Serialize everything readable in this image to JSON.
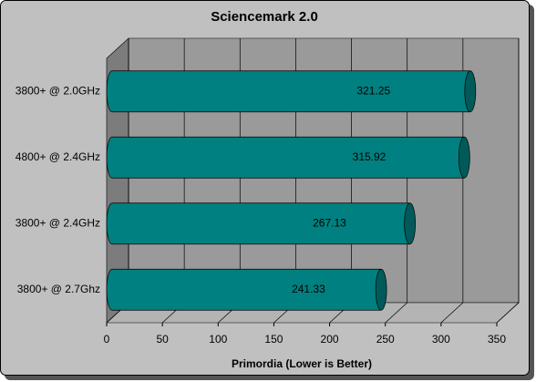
{
  "chart_data": {
    "type": "bar",
    "orientation": "horizontal",
    "title": "Sciencemark 2.0",
    "x_label": "Primordia (Lower is Better)",
    "categories": [
      "3800+ @ 2.0GHz",
      "4800+ @ 2.4GHz",
      "3800+ @ 2.4GHz",
      "3800+ @ 2.7Ghz"
    ],
    "values": [
      321.25,
      315.92,
      267.13,
      241.33
    ],
    "color": "#008080",
    "xlim": [
      0,
      350
    ],
    "xticks": [
      0,
      50,
      100,
      150,
      200,
      250,
      300,
      350
    ],
    "grid": true
  }
}
